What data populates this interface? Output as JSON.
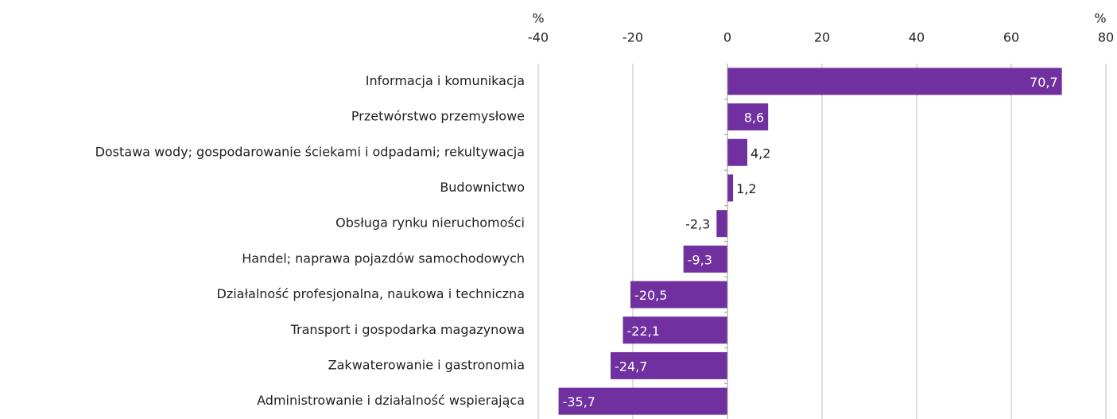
{
  "chart_data": {
    "type": "barh",
    "xlabel": "%",
    "categories": [
      "Informacja i komunikacja",
      "Przetwórstwo przemysłowe",
      "Dostawa wody; gospodarowanie ściekami i odpadami; rekultywacja",
      "Budownictwo",
      "Obsługa rynku nieruchomości",
      "Handel; naprawa pojazdów samochodowych",
      "Działalność profesjonalna, naukowa i techniczna",
      "Transport i gospodarka magazynowa",
      "Zakwaterowanie i gastronomia",
      "Administrowanie i działalność wspierająca"
    ],
    "values": [
      70.7,
      8.6,
      4.2,
      1.2,
      -2.3,
      -9.3,
      -20.5,
      -22.1,
      -24.7,
      -35.7
    ],
    "value_labels": [
      "70,7",
      "8,6",
      "4,2",
      "1,2",
      "-2,3",
      "-9,3",
      "-20,5",
      "-22,1",
      "-24,7",
      "-35,7"
    ],
    "color": "#7030a0",
    "xlim": [
      -40,
      80
    ],
    "xticks": [
      -40,
      -20,
      0,
      20,
      40,
      60,
      80
    ],
    "grid": true
  }
}
